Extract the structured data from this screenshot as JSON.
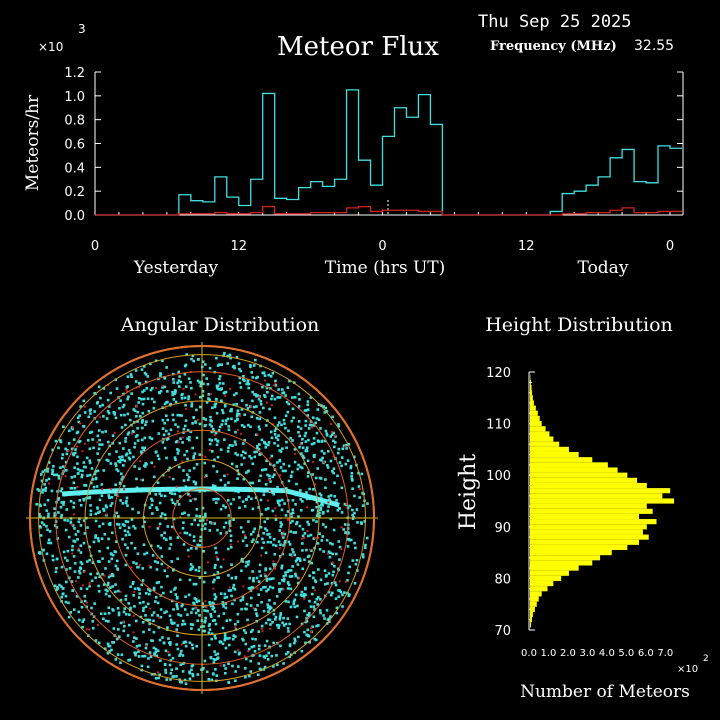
{
  "header": {
    "date": "Thu Sep 25 2025",
    "title": "Meteor Flux",
    "freq_label": "Frequency (MHz)",
    "freq_value": "32.55",
    "multiplier": "×10",
    "multiplier_exp": "3"
  },
  "flux_chart": {
    "type": "line",
    "ylabel": "Meteors/hr",
    "xlabel": "Time (hrs UT)",
    "ylim": [
      0,
      1.2
    ],
    "yticks": [
      "0.0",
      "0.2",
      "0.4",
      "0.6",
      "0.8",
      "1.0",
      "1.2"
    ],
    "xticks": [
      "0",
      "12",
      "0",
      "12",
      "0"
    ],
    "day_labels": [
      "Yesterday",
      "Today"
    ],
    "series": [
      {
        "name": "",
        "color": "#40e0e0",
        "x": [
          0,
          1,
          2,
          3,
          4,
          5,
          6,
          7,
          8,
          9,
          10,
          11,
          12,
          13,
          14,
          15,
          16,
          17,
          18,
          19,
          20,
          21,
          22,
          23,
          24,
          25,
          26,
          27,
          28,
          29,
          30,
          31,
          32,
          33,
          34,
          35,
          36,
          37,
          38,
          39,
          40,
          41,
          42,
          43,
          44,
          45,
          46,
          47,
          48
        ],
        "values": [
          0,
          0,
          0,
          0,
          0,
          0,
          0,
          0.17,
          0.12,
          0.11,
          0.32,
          0.15,
          0.08,
          0.3,
          1.02,
          0.14,
          0.13,
          0.23,
          0.28,
          0.24,
          0.3,
          1.05,
          0.46,
          0.25,
          0.66,
          0.9,
          0.82,
          1.01,
          0.76,
          0,
          0,
          0,
          0,
          0,
          0,
          0,
          0,
          0,
          0.03,
          0.18,
          0.2,
          0.25,
          0.32,
          0.48,
          0.55,
          0.28,
          0.27,
          0.58,
          0.56
        ]
      },
      {
        "name": "",
        "color": "#d02020",
        "x": [
          0,
          1,
          2,
          3,
          4,
          5,
          6,
          7,
          8,
          9,
          10,
          11,
          12,
          13,
          14,
          15,
          16,
          17,
          18,
          19,
          20,
          21,
          22,
          23,
          24,
          25,
          26,
          27,
          28,
          29,
          30,
          31,
          32,
          33,
          34,
          35,
          36,
          37,
          38,
          39,
          40,
          41,
          42,
          43,
          44,
          45,
          46,
          47,
          48
        ],
        "values": [
          0,
          0,
          0,
          0,
          0,
          0,
          0,
          0.01,
          0.01,
          0.01,
          0.02,
          0.01,
          0.01,
          0.02,
          0.07,
          0.01,
          0.01,
          0.01,
          0.02,
          0.02,
          0.02,
          0.06,
          0.07,
          0.03,
          0.04,
          0.04,
          0.04,
          0.03,
          0.03,
          0,
          0,
          0,
          0,
          0,
          0,
          0,
          0,
          0,
          0,
          0.01,
          0.01,
          0.02,
          0.02,
          0.04,
          0.06,
          0.02,
          0.02,
          0.03,
          0.03
        ]
      }
    ]
  },
  "angular": {
    "title": "Angular Distribution"
  },
  "height_chart": {
    "type": "bar",
    "title": "Height Distribution",
    "ylabel": "Height",
    "xlabel": "Number of Meteors",
    "yticks": [
      "70",
      "80",
      "90",
      "100",
      "110",
      "120"
    ],
    "xticks": [
      "0.0",
      "1.0",
      "2.0",
      "3.0",
      "4.0",
      "5.0",
      "6.0",
      "7.0"
    ],
    "x_multiplier": "×10",
    "x_multiplier_exp": "2",
    "color": "#ffff00",
    "heights": [
      71,
      72,
      73,
      74,
      75,
      76,
      77,
      78,
      79,
      80,
      81,
      82,
      83,
      84,
      85,
      86,
      87,
      88,
      89,
      90,
      91,
      92,
      93,
      94,
      95,
      96,
      97,
      98,
      99,
      100,
      101,
      102,
      103,
      104,
      105,
      106,
      107,
      108,
      109,
      110,
      111,
      112,
      113,
      114,
      115,
      116,
      117,
      118,
      119
    ],
    "counts": [
      0.05,
      0.1,
      0.15,
      0.25,
      0.35,
      0.45,
      0.6,
      0.9,
      1.2,
      1.6,
      2.0,
      2.5,
      3.2,
      3.6,
      4.2,
      5.0,
      5.6,
      6.1,
      5.8,
      6.0,
      6.5,
      5.6,
      6.3,
      6.0,
      7.4,
      6.8,
      7.2,
      6.0,
      5.5,
      5.0,
      4.5,
      4.0,
      3.2,
      2.5,
      2.0,
      1.5,
      1.2,
      1.0,
      0.8,
      0.6,
      0.5,
      0.4,
      0.3,
      0.2,
      0.15,
      0.1,
      0.08,
      0.05,
      0.02
    ]
  }
}
